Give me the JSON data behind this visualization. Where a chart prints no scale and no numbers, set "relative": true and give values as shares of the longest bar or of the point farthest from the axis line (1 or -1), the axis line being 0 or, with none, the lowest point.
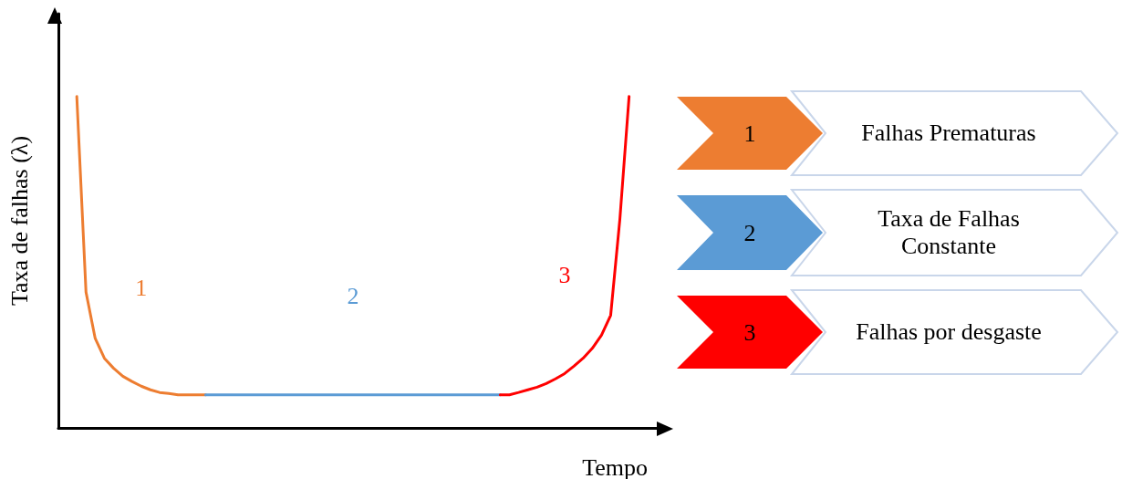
{
  "chart_data": {
    "type": "line",
    "relative": true,
    "xlabel": "Tempo",
    "ylabel": "Taxa de falhas (λ)",
    "categories": [
      null,
      null,
      null,
      null,
      null,
      null,
      null,
      null,
      null,
      null,
      null,
      null,
      null,
      null,
      null,
      null,
      null,
      null,
      null,
      null,
      null,
      null,
      null,
      null,
      null,
      null,
      null,
      null,
      null,
      null,
      null,
      null,
      null,
      null,
      null,
      null,
      null,
      null,
      null,
      null,
      null,
      null,
      null,
      null,
      null,
      null,
      null,
      null,
      null,
      null,
      null,
      null,
      null,
      null,
      null,
      null,
      null,
      null,
      null,
      null,
      null,
      null,
      null,
      null,
      null,
      null,
      null
    ],
    "series": [
      {
        "name": "1",
        "color": "#ed7d31",
        "values": [
          null,
          null,
          1.0,
          0.41,
          0.27,
          0.21,
          0.18,
          0.156,
          0.14,
          0.126,
          0.115,
          0.107,
          0.104,
          0.1,
          0.1,
          0.1,
          0.1,
          null,
          null,
          null,
          null,
          null,
          null,
          null,
          null,
          null,
          null,
          null,
          null,
          null,
          null,
          null,
          null,
          null,
          null,
          null,
          null,
          null,
          null,
          null,
          null,
          null,
          null,
          null,
          null,
          null,
          null,
          null,
          null,
          null,
          null,
          null,
          null,
          null,
          null,
          null,
          null,
          null,
          null,
          null,
          null,
          null,
          null,
          null,
          null,
          null,
          null
        ]
      },
      {
        "name": "2",
        "color": "#5b9bd5",
        "values": [
          null,
          null,
          null,
          null,
          null,
          null,
          null,
          null,
          null,
          null,
          null,
          null,
          null,
          null,
          null,
          null,
          0.1,
          0.1,
          0.1,
          0.1,
          0.1,
          0.1,
          0.1,
          0.1,
          0.1,
          0.1,
          0.1,
          0.1,
          0.1,
          0.1,
          0.1,
          0.1,
          0.1,
          0.1,
          0.1,
          0.1,
          0.1,
          0.1,
          0.1,
          0.1,
          0.1,
          0.1,
          0.1,
          0.1,
          0.1,
          0.1,
          0.1,
          0.1,
          0.1,
          null,
          null,
          null,
          null,
          null,
          null,
          null,
          null,
          null,
          null,
          null,
          null,
          null,
          null,
          null,
          null,
          null,
          null
        ]
      },
      {
        "name": "3",
        "color": "#ff0000",
        "values": [
          null,
          null,
          null,
          null,
          null,
          null,
          null,
          null,
          null,
          null,
          null,
          null,
          null,
          null,
          null,
          null,
          null,
          null,
          null,
          null,
          null,
          null,
          null,
          null,
          null,
          null,
          null,
          null,
          null,
          null,
          null,
          null,
          null,
          null,
          null,
          null,
          null,
          null,
          null,
          null,
          null,
          null,
          null,
          null,
          null,
          null,
          null,
          null,
          0.1,
          0.1,
          0.107,
          0.115,
          0.123,
          0.134,
          0.148,
          0.164,
          0.186,
          0.21,
          0.24,
          0.28,
          0.34,
          0.63,
          1.0,
          null,
          null,
          null,
          null
        ]
      }
    ],
    "legend": "right",
    "annotations": [
      "Falhas Prematuras",
      "Taxa de Falhas Constante",
      "Falhas por desgaste"
    ],
    "grid": false,
    "marker": "none",
    "line_style": "solid"
  }
}
